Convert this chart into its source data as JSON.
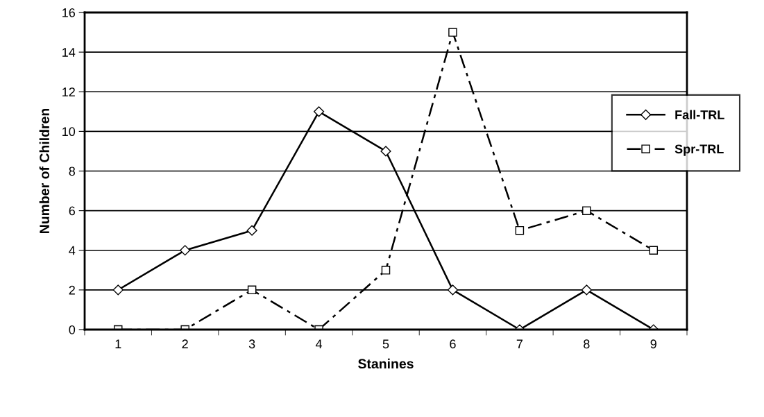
{
  "chart_data": {
    "type": "line",
    "xlabel": "Stanines",
    "ylabel": "Number of Children",
    "categories": [
      "1",
      "2",
      "3",
      "4",
      "5",
      "6",
      "7",
      "8",
      "9"
    ],
    "series": [
      {
        "name": "Fall-TRL",
        "color": "#000000",
        "values": [
          2,
          4,
          5,
          11,
          9,
          2,
          0,
          2,
          0
        ],
        "marker": "diamond",
        "line_style": "solid"
      },
      {
        "name": "Spr-TRL",
        "color": "#000000",
        "values": [
          0,
          0,
          2,
          0,
          3,
          15,
          5,
          6,
          4
        ],
        "marker": "square",
        "line_style": "dashed"
      }
    ],
    "ylim": [
      0,
      16
    ],
    "yticks": [
      0,
      2,
      4,
      6,
      8,
      10,
      12,
      14,
      16
    ],
    "grid": "y",
    "legend": "right"
  }
}
